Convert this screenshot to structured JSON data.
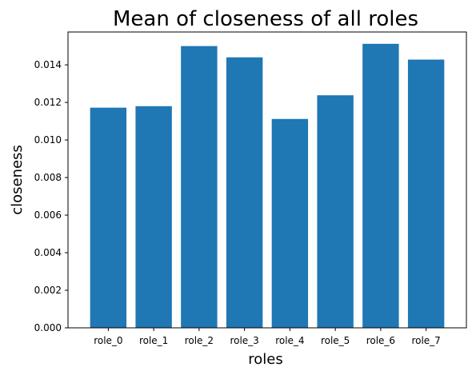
{
  "chart_data": {
    "type": "bar",
    "title": "Mean of closeness of all roles",
    "xlabel": "roles",
    "ylabel": "closeness",
    "categories": [
      "role_0",
      "role_1",
      "role_2",
      "role_3",
      "role_4",
      "role_5",
      "role_6",
      "role_7"
    ],
    "values": [
      0.01172,
      0.0118,
      0.015,
      0.0144,
      0.01112,
      0.01238,
      0.01512,
      0.01428
    ],
    "ylim": [
      0,
      0.01575
    ],
    "yticks": [
      "0.000",
      "0.002",
      "0.004",
      "0.006",
      "0.008",
      "0.010",
      "0.012",
      "0.014"
    ],
    "ytick_values": [
      0,
      0.002,
      0.004,
      0.006,
      0.008,
      0.01,
      0.012,
      0.014
    ],
    "grid": false,
    "legend": "none",
    "bar_color": "#1f77b4"
  }
}
